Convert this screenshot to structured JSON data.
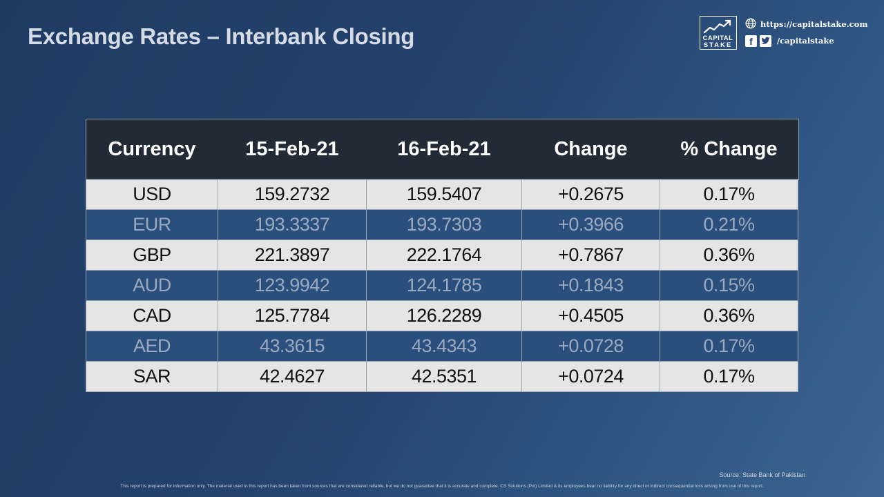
{
  "title": "Exchange Rates – Interbank Closing",
  "brand": {
    "logo_line1": "CAPITAL",
    "logo_line2": "STAKE",
    "website": "https://capitalstake.com",
    "social_handle": "/capitalstake",
    "icons": [
      "globe-icon",
      "facebook-icon",
      "twitter-icon"
    ]
  },
  "chart_data": {
    "type": "table",
    "columns": [
      "Currency",
      "15-Feb-21",
      "16-Feb-21",
      "Change",
      "% Change"
    ],
    "rows": [
      [
        "USD",
        "159.2732",
        "159.5407",
        "+0.2675",
        "0.17%"
      ],
      [
        "EUR",
        "193.3337",
        "193.7303",
        "+0.3966",
        "0.21%"
      ],
      [
        "GBP",
        "221.3897",
        "222.1764",
        "+0.7867",
        "0.36%"
      ],
      [
        "AUD",
        "123.9942",
        "124.1785",
        "+0.1843",
        "0.15%"
      ],
      [
        "CAD",
        "125.7784",
        "126.2289",
        "+0.4505",
        "0.36%"
      ],
      [
        "AED",
        "43.3615",
        "43.4343",
        "+0.0728",
        "0.17%"
      ],
      [
        "SAR",
        "42.4627",
        "42.5351",
        "+0.0724",
        "0.17%"
      ]
    ]
  },
  "source": "Source: State Bank of Pakistan",
  "disclaimer": "This report is prepared for information only. The material used in this report has been taken from sources that are considered reliable, but we do not guarantee that it is accurate and complete. CS Solutions (Pvt) Limited & its employees bear no liability for any direct or indirect consequential loss arising from use of this report.",
  "colors": {
    "header_bg": "#222a35",
    "row_light": "#e5e5e5",
    "row_dark": "#2a4f7c",
    "background": "#24426c"
  }
}
